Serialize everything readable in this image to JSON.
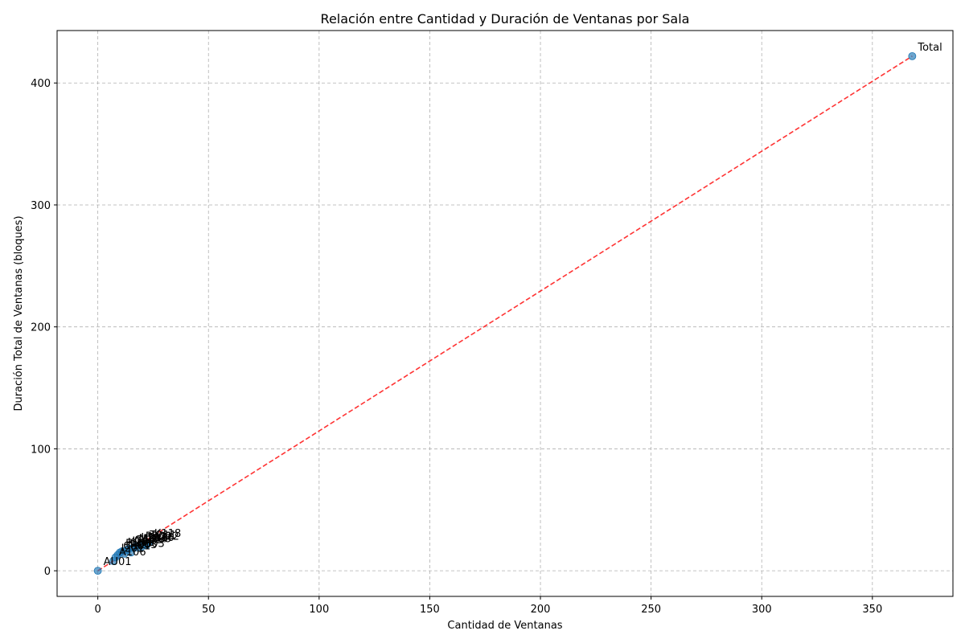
{
  "chart_data": {
    "type": "scatter",
    "title": "Relación entre Cantidad y Duración de Ventanas por Sala",
    "xlabel": "Cantidad de Ventanas",
    "ylabel": "Duración Total de Ventanas (bloques)",
    "xlim": [
      -18.4,
      386.4
    ],
    "ylim": [
      -21,
      443
    ],
    "xticks": [
      0,
      50,
      100,
      150,
      200,
      250,
      300,
      350
    ],
    "yticks": [
      0,
      100,
      200,
      300,
      400
    ],
    "grid": true,
    "point_color": "#1f77b4",
    "trend_color": "#ff0000",
    "trend_line": {
      "x": [
        0,
        368
      ],
      "y": [
        0,
        422
      ]
    },
    "points": [
      {
        "label": "Total",
        "x": 368,
        "y": 422
      },
      {
        "label": "AU01",
        "x": 0,
        "y": 0
      },
      {
        "label": "A106",
        "x": 7,
        "y": 8
      },
      {
        "label": "I201",
        "x": 8,
        "y": 11
      },
      {
        "label": "C301",
        "x": 9,
        "y": 13
      },
      {
        "label": "E105",
        "x": 10,
        "y": 15
      },
      {
        "label": "K202",
        "x": 11,
        "y": 16
      },
      {
        "label": "R203",
        "x": 12,
        "y": 14
      },
      {
        "label": "J204",
        "x": 13,
        "y": 17
      },
      {
        "label": "G105",
        "x": 14,
        "y": 18
      },
      {
        "label": "D303",
        "x": 15,
        "y": 15
      },
      {
        "label": "M206",
        "x": 16,
        "y": 19
      },
      {
        "label": "L207",
        "x": 17,
        "y": 20
      },
      {
        "label": "N108",
        "x": 18,
        "y": 19
      },
      {
        "label": "P209",
        "x": 19,
        "y": 21
      },
      {
        "label": "S110",
        "x": 20,
        "y": 20
      },
      {
        "label": "T211",
        "x": 21,
        "y": 22
      },
      {
        "label": "V212",
        "x": 22,
        "y": 21
      },
      {
        "label": "K118",
        "x": 23,
        "y": 23
      }
    ]
  }
}
